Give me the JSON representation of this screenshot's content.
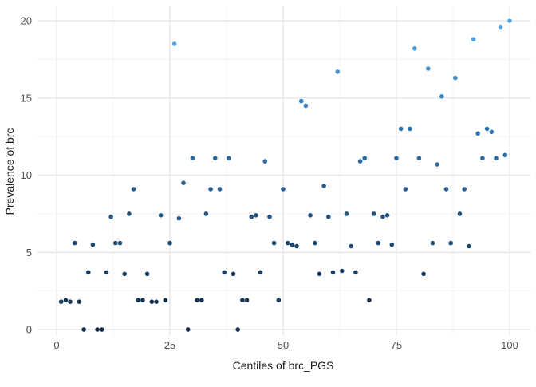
{
  "figure": {
    "background": "#ffffff",
    "grid_major_color": "#e3e3e3",
    "grid_minor_color": "#f0f0f0",
    "tick_label_color": "#4d4d4d",
    "axis_title_color": "#1a1a1a"
  },
  "chart_data": {
    "type": "scatter",
    "title": "",
    "xlabel": "Centiles of brc_PGS",
    "ylabel": "Prevalence of brc",
    "xlim": [
      0,
      100
    ],
    "ylim": [
      0,
      20
    ],
    "x_ticks": [
      0,
      25,
      50,
      75,
      100
    ],
    "y_ticks": [
      0,
      5,
      10,
      15,
      20
    ],
    "x_minor": [
      12.5,
      37.5,
      62.5,
      87.5
    ],
    "y_minor": [
      2.5,
      7.5,
      12.5,
      17.5
    ],
    "grid": "on",
    "legend": "none",
    "point_color_mapped_to": "y value (prevalence)",
    "color_scale": {
      "low": "#132B43",
      "mid": "#2E74B2",
      "high": "#58A9EA",
      "low_value": 0,
      "mid_value": 13,
      "high_value": 20
    },
    "points": [
      [
        1,
        1.8
      ],
      [
        2,
        1.9
      ],
      [
        3,
        1.8
      ],
      [
        4,
        5.6
      ],
      [
        5,
        1.8
      ],
      [
        6,
        0
      ],
      [
        7,
        3.7
      ],
      [
        8,
        5.5
      ],
      [
        9,
        0
      ],
      [
        10,
        0
      ],
      [
        11,
        3.7
      ],
      [
        12,
        7.3
      ],
      [
        13,
        5.6
      ],
      [
        14,
        5.6
      ],
      [
        15,
        3.6
      ],
      [
        16,
        7.5
      ],
      [
        17,
        9.1
      ],
      [
        18,
        1.9
      ],
      [
        19,
        1.9
      ],
      [
        20,
        3.6
      ],
      [
        21,
        1.8
      ],
      [
        22,
        1.8
      ],
      [
        23,
        7.4
      ],
      [
        24,
        1.9
      ],
      [
        25,
        5.6
      ],
      [
        26,
        18.5
      ],
      [
        27,
        7.2
      ],
      [
        28,
        9.5
      ],
      [
        29,
        0
      ],
      [
        30,
        11.1
      ],
      [
        31,
        1.9
      ],
      [
        32,
        1.9
      ],
      [
        33,
        7.5
      ],
      [
        34,
        9.1
      ],
      [
        35,
        11.1
      ],
      [
        36,
        9.1
      ],
      [
        37,
        3.7
      ],
      [
        38,
        11.1
      ],
      [
        39,
        3.6
      ],
      [
        40,
        0
      ],
      [
        41,
        1.9
      ],
      [
        42,
        1.9
      ],
      [
        43,
        7.3
      ],
      [
        44,
        7.4
      ],
      [
        45,
        3.7
      ],
      [
        46,
        10.9
      ],
      [
        47,
        7.3
      ],
      [
        48,
        5.6
      ],
      [
        49,
        1.9
      ],
      [
        50,
        9.1
      ],
      [
        51,
        5.6
      ],
      [
        52,
        5.5
      ],
      [
        53,
        5.4
      ],
      [
        54,
        14.8
      ],
      [
        55,
        14.5
      ],
      [
        56,
        7.4
      ],
      [
        57,
        5.6
      ],
      [
        58,
        3.6
      ],
      [
        59,
        9.3
      ],
      [
        60,
        7.3
      ],
      [
        61,
        3.7
      ],
      [
        62,
        16.7
      ],
      [
        63,
        3.8
      ],
      [
        64,
        7.5
      ],
      [
        65,
        5.4
      ],
      [
        66,
        3.7
      ],
      [
        67,
        10.9
      ],
      [
        68,
        11.1
      ],
      [
        69,
        1.9
      ],
      [
        70,
        7.5
      ],
      [
        71,
        5.6
      ],
      [
        72,
        7.3
      ],
      [
        73,
        7.4
      ],
      [
        74,
        5.5
      ],
      [
        75,
        11.1
      ],
      [
        76,
        13.0
      ],
      [
        77,
        9.1
      ],
      [
        78,
        13.0
      ],
      [
        79,
        18.2
      ],
      [
        80,
        11.1
      ],
      [
        81,
        3.6
      ],
      [
        82,
        16.9
      ],
      [
        83,
        5.6
      ],
      [
        84,
        10.7
      ],
      [
        85,
        15.1
      ],
      [
        86,
        9.1
      ],
      [
        87,
        5.6
      ],
      [
        88,
        16.3
      ],
      [
        89,
        7.5
      ],
      [
        90,
        9.1
      ],
      [
        91,
        5.4
      ],
      [
        92,
        18.8
      ],
      [
        93,
        12.7
      ],
      [
        94,
        11.1
      ],
      [
        95,
        13.0
      ],
      [
        96,
        12.8
      ],
      [
        97,
        11.1
      ],
      [
        98,
        19.6
      ],
      [
        99,
        11.3
      ],
      [
        100,
        20
      ]
    ]
  }
}
